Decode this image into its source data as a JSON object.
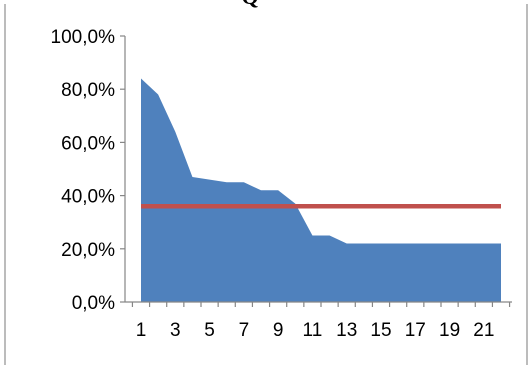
{
  "chart_data": {
    "type": "area",
    "title": "Q",
    "xlabel": "",
    "ylabel": "",
    "x": [
      1,
      2,
      3,
      4,
      5,
      6,
      7,
      8,
      9,
      10,
      11,
      12,
      13,
      14,
      15,
      16,
      17,
      18,
      19,
      20,
      21,
      22
    ],
    "x_tick_labels": [
      "1",
      "3",
      "5",
      "7",
      "9",
      "11",
      "13",
      "15",
      "17",
      "19",
      "21"
    ],
    "y_tick_labels": [
      "0,0%",
      "20,0%",
      "40,0%",
      "60,0%",
      "80,0%",
      "100,0%"
    ],
    "ylim": [
      0,
      100
    ],
    "grid": false,
    "legend": "none",
    "series": [
      {
        "type": "area",
        "color": "#4f81bd",
        "values": [
          84,
          78,
          64,
          47,
          46,
          45,
          45,
          42,
          42,
          37,
          25,
          25,
          22,
          22,
          22,
          22,
          22,
          22,
          22,
          22,
          22,
          22
        ]
      },
      {
        "type": "line",
        "color": "#c0504d",
        "values": [
          36,
          36,
          36,
          36,
          36,
          36,
          36,
          36,
          36,
          36,
          36,
          36,
          36,
          36,
          36,
          36,
          36,
          36,
          36,
          36,
          36,
          36
        ]
      }
    ]
  }
}
